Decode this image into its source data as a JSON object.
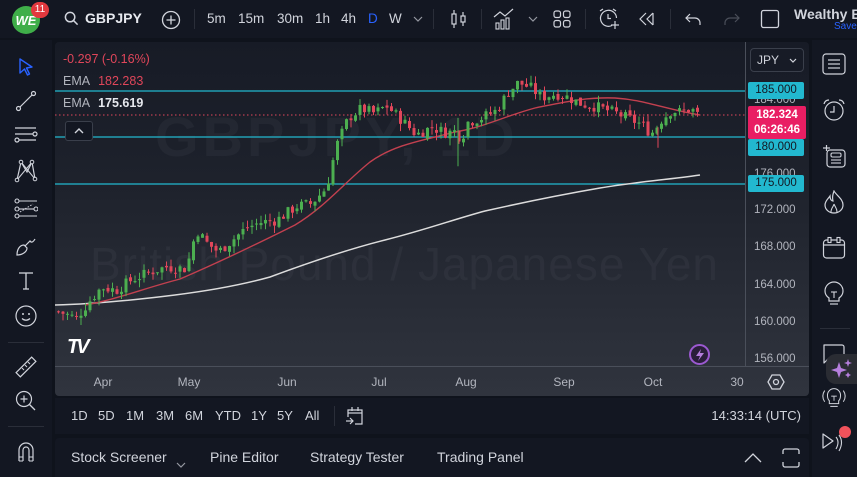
{
  "header": {
    "logo_text": "WE",
    "notification_count": "11",
    "symbol": "GBPJPY",
    "timeframes": [
      "5m",
      "15m",
      "30m",
      "1h",
      "4h",
      "D",
      "W"
    ],
    "active_timeframe": "D",
    "account_name": "Wealthy E",
    "save_label": "Save"
  },
  "legend": {
    "change": "-0.297 (-0.16%)",
    "ema1_label": "EMA",
    "ema1_value": "182.283",
    "ema2_label": "EMA",
    "ema2_value": "175.619"
  },
  "watermark": {
    "symbol": "GBPJPY, 1D",
    "name": "British Pound / Japanese Yen"
  },
  "price_axis": {
    "currency": "JPY",
    "ticks": [
      "184.000",
      "176.000",
      "172.000",
      "168.000",
      "164.000",
      "160.000",
      "156.000"
    ],
    "level_labels": [
      "185.000",
      "180.000",
      "175.000"
    ],
    "current_price": "182.324",
    "countdown": "06:26:46"
  },
  "time_axis": {
    "labels": [
      "Apr",
      "May",
      "Jun",
      "Jul",
      "Aug",
      "Sep",
      "Oct",
      "30"
    ]
  },
  "range_bar": {
    "ranges": [
      "1D",
      "5D",
      "1M",
      "3M",
      "6M",
      "YTD",
      "1Y",
      "5Y",
      "All"
    ],
    "clock": "14:33:14 (UTC)"
  },
  "bottom_panel": {
    "tabs": [
      "Stock Screener",
      "Pine Editor",
      "Strategy Tester",
      "Trading Panel"
    ]
  },
  "colors": {
    "up": "#4caf50",
    "down": "#e0465a",
    "ema_fast": "#c2404f",
    "ema_slow": "#d8d8d8",
    "level_line": "#22b8cf",
    "current_price": "#e91e63",
    "active_tf": "#2962ff"
  },
  "chart_data": {
    "type": "candlestick",
    "title": "GBPJPY, 1D — British Pound / Japanese Yen",
    "xlabel": "",
    "ylabel": "JPY",
    "ylim": [
      154.5,
      188.5
    ],
    "x_ticks": [
      "Apr",
      "May",
      "Jun",
      "Jul",
      "Aug",
      "Sep",
      "Oct",
      "30"
    ],
    "horizontal_levels": [
      185.0,
      180.0,
      175.0
    ],
    "current_price": 182.324,
    "series": [
      {
        "name": "EMA (fast)",
        "last": 182.283,
        "points": [
          [
            57,
            161.5
          ],
          [
            100,
            161.8
          ],
          [
            150,
            163.0
          ],
          [
            200,
            164.8
          ],
          [
            232,
            166.0
          ],
          [
            260,
            167.5
          ],
          [
            300,
            169.5
          ],
          [
            330,
            171.5
          ],
          [
            355,
            175.0
          ],
          [
            380,
            177.2
          ],
          [
            410,
            178.5
          ],
          [
            455,
            180.0
          ],
          [
            500,
            181.2
          ],
          [
            540,
            182.8
          ],
          [
            580,
            184.0
          ],
          [
            620,
            184.2
          ],
          [
            660,
            183.2
          ],
          [
            700,
            182.3
          ]
        ]
      },
      {
        "name": "EMA (slow)",
        "last": 175.619,
        "points": [
          [
            57,
            161.8
          ],
          [
            100,
            161.9
          ],
          [
            150,
            162.5
          ],
          [
            200,
            163.3
          ],
          [
            240,
            164.4
          ],
          [
            280,
            166.0
          ],
          [
            330,
            168.0
          ],
          [
            380,
            169.8
          ],
          [
            430,
            171.6
          ],
          [
            480,
            173.2
          ],
          [
            530,
            174.2
          ],
          [
            580,
            175.0
          ],
          [
            630,
            175.3
          ],
          [
            700,
            175.6
          ]
        ]
      }
    ],
    "approx_closes": [
      {
        "date": "Apr",
        "close": 162.0
      },
      {
        "date": "May",
        "close": 166.5
      },
      {
        "date": "Jun",
        "close": 171.5
      },
      {
        "date": "Jul",
        "close": 183.0
      },
      {
        "date": "Aug",
        "close": 182.5
      },
      {
        "date": "Aug-high",
        "close": 186.2
      },
      {
        "date": "Sep",
        "close": 184.0
      },
      {
        "date": "Oct",
        "close": 181.0
      },
      {
        "date": "last",
        "close": 182.324
      }
    ]
  }
}
